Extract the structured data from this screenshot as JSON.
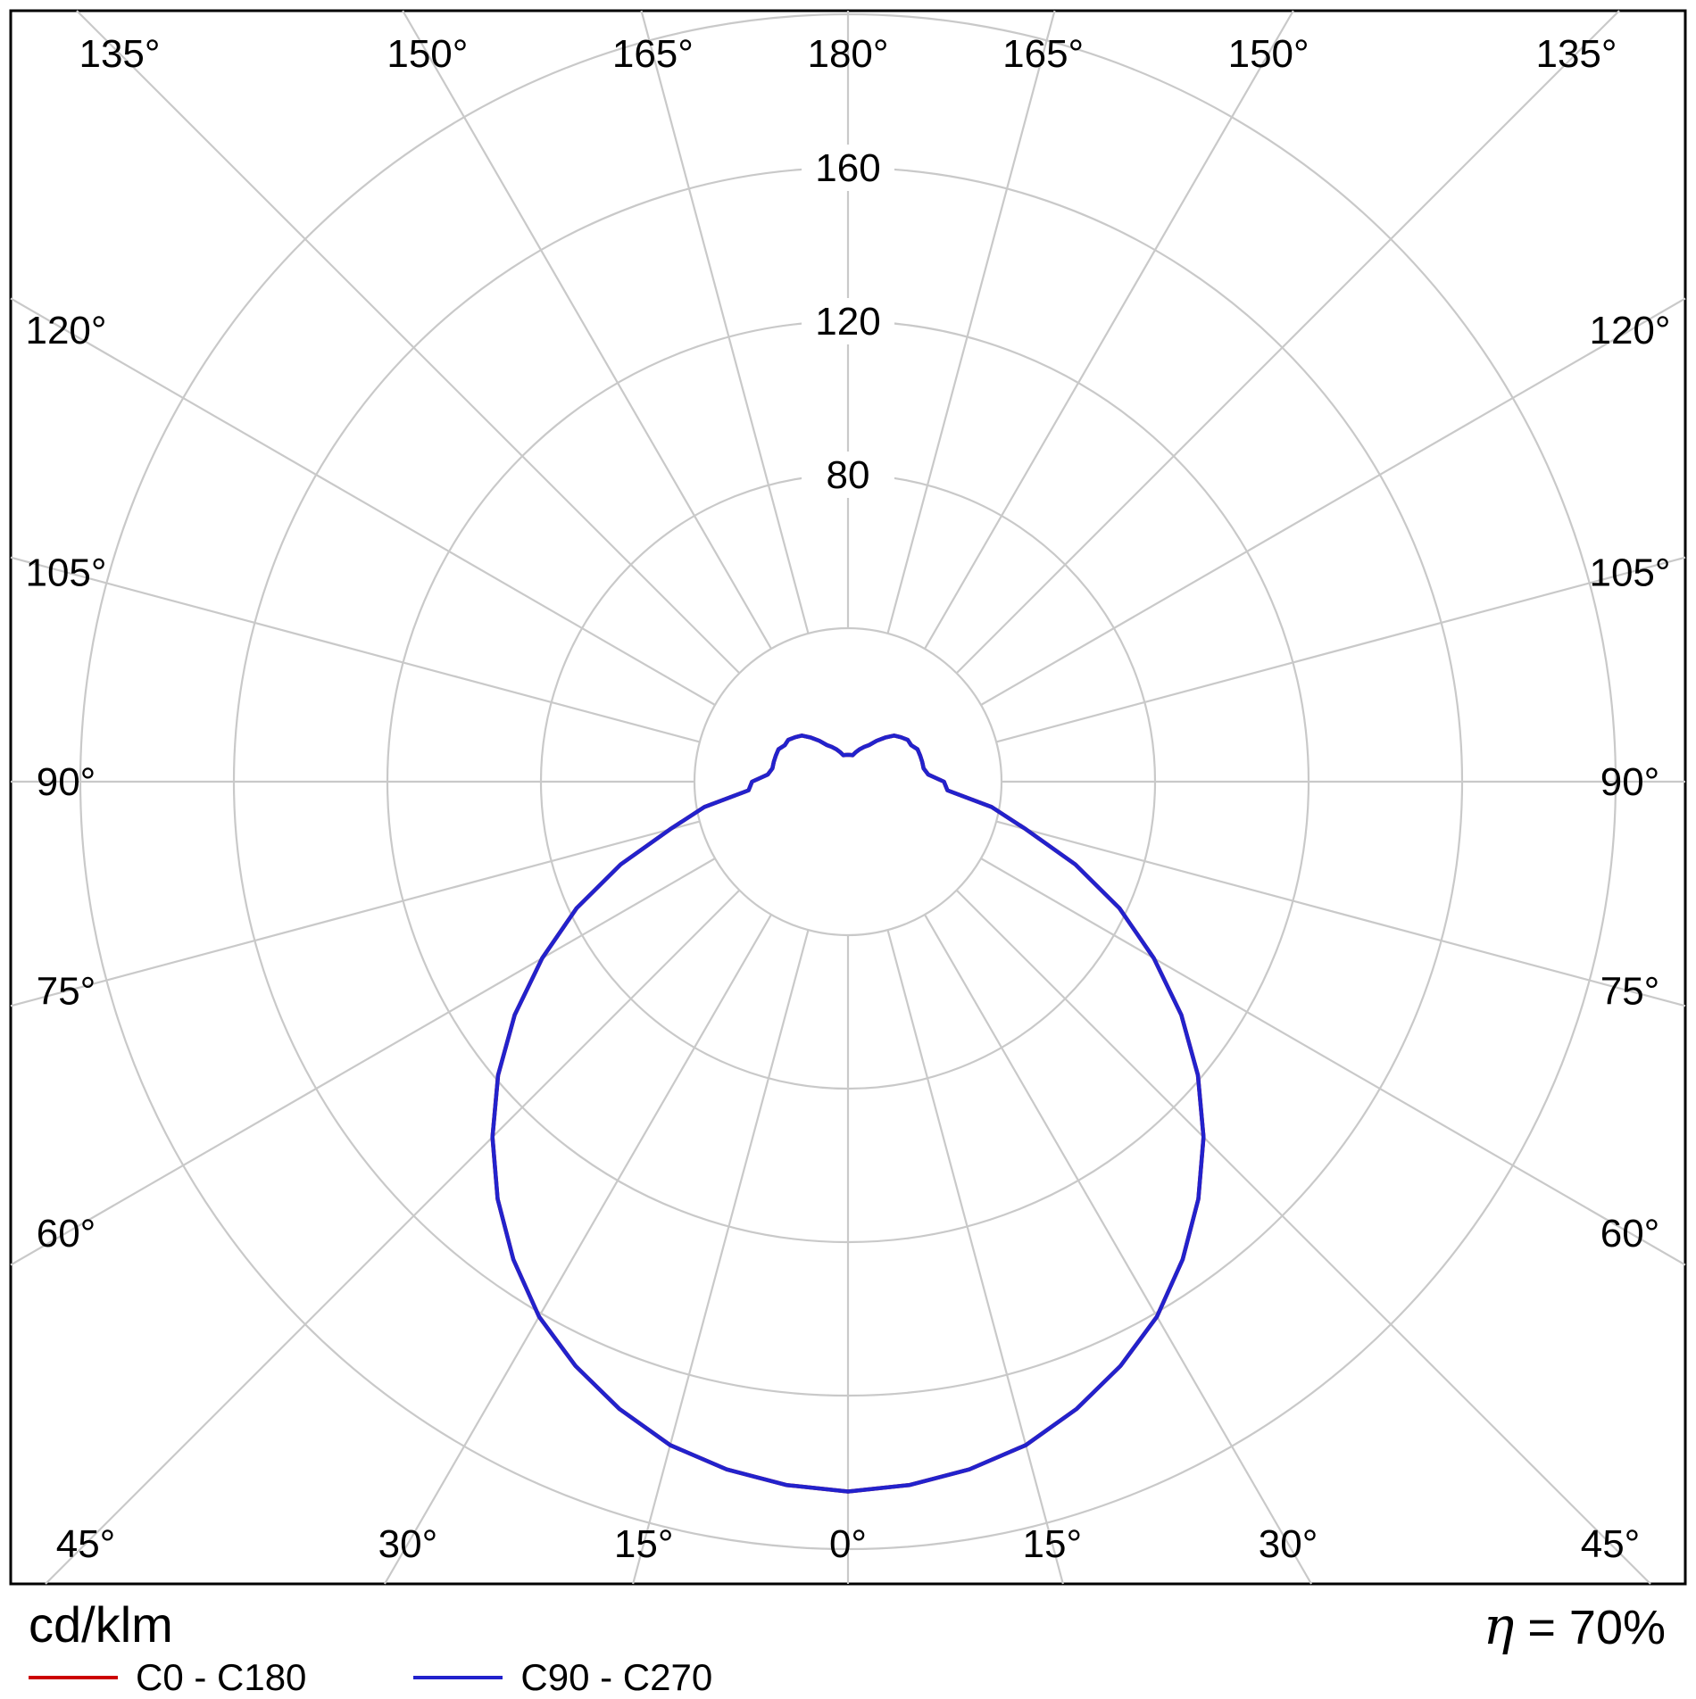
{
  "chart_data": {
    "type": "line",
    "subtype": "polar_photometric_distribution",
    "title": "",
    "units_label": "cd/klm",
    "efficiency": {
      "symbol": "η",
      "text": "= 70%"
    },
    "angle_zero_position": "bottom",
    "angle_step_deg": 15,
    "angle_tick_values": [
      0,
      15,
      30,
      45,
      60,
      75,
      90,
      105,
      120,
      135,
      150,
      165,
      180
    ],
    "radial_circle_values": [
      40,
      80,
      120,
      160,
      200
    ],
    "radial_tick_labels": [
      80,
      120,
      160
    ],
    "r_range": [
      0,
      200
    ],
    "grid": true,
    "grid_color": "#c9c9c9",
    "frame_color": "#000000",
    "legend_position": "bottom-left",
    "gamma_step": 5,
    "gamma_range": [
      0,
      180
    ],
    "series": [
      {
        "name": "C0 - C180",
        "color": "#cc0000",
        "values": [
          185,
          184,
          182,
          179,
          174,
          168,
          161,
          152,
          142,
          131,
          119,
          106,
          92,
          78,
          63,
          48,
          38,
          26,
          25,
          21,
          20,
          20,
          20,
          20,
          19,
          19,
          18,
          17,
          15,
          13,
          11,
          10,
          9,
          8,
          7,
          7,
          7
        ]
      },
      {
        "name": "C90 - C270",
        "color": "#2222cc",
        "values": [
          185,
          184,
          182,
          179,
          174,
          168,
          161,
          152,
          142,
          131,
          119,
          106,
          92,
          78,
          63,
          48,
          38,
          26,
          25,
          21,
          20,
          20,
          20,
          20,
          19,
          19,
          18,
          17,
          15,
          13,
          11,
          10,
          9,
          8,
          7,
          7,
          7
        ]
      }
    ]
  }
}
